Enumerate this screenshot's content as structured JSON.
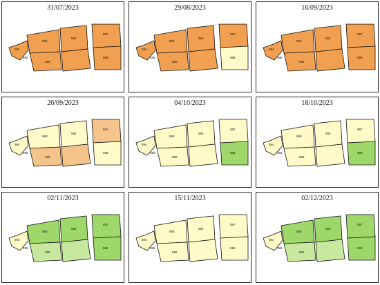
{
  "colors": {
    "bare_soil": "#f0a050",
    "pale_yellow": "#fffac8",
    "light_green": "#9ed86a",
    "outline": "#111111"
  },
  "panels": [
    {
      "date": "31/07/2023",
      "labels": [
        "593",
        "592",
        "594",
        "595",
        "596",
        "597",
        "598"
      ]
    },
    {
      "date": "29/08/2023",
      "labels": [
        "593",
        "592",
        "594",
        "595",
        "596",
        "597",
        "598"
      ]
    },
    {
      "date": "16/09/2023",
      "labels": [
        "593",
        "592",
        "594",
        "595",
        "596",
        "597",
        "598"
      ]
    },
    {
      "date": "26/09/2023",
      "labels": [
        "593",
        "592",
        "594",
        "595",
        "596",
        "597",
        "598"
      ]
    },
    {
      "date": "04/10/2023",
      "labels": [
        "593",
        "592",
        "594",
        "595",
        "596",
        "597",
        "598"
      ]
    },
    {
      "date": "18/10/2023",
      "labels": [
        "593",
        "592",
        "594",
        "595",
        "596",
        "597",
        "598"
      ]
    },
    {
      "date": "02/11/2023",
      "labels": [
        "593",
        "592",
        "594",
        "595",
        "596",
        "597",
        "598"
      ]
    },
    {
      "date": "15/11/2023",
      "labels": [
        "593",
        "592",
        "594",
        "595",
        "596",
        "597",
        "598"
      ]
    },
    {
      "date": "02/12/2023",
      "labels": [
        "593",
        "592",
        "594",
        "595",
        "596",
        "597",
        "598"
      ]
    }
  ]
}
